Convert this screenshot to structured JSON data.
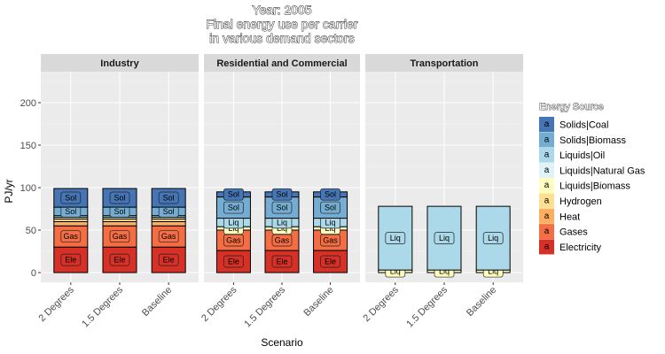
{
  "chart_data": {
    "type": "bar",
    "stacked": true,
    "title_lines": [
      "Year: 2005",
      "Final energy use per carrier",
      "in various demand sectors"
    ],
    "xlabel": "Scenario",
    "ylabel": "PJ/yr",
    "ylim": [
      -10,
      235
    ],
    "yticks": [
      0,
      50,
      100,
      150,
      200
    ],
    "grid": true,
    "categories": [
      "2 Degrees",
      "1.5 Degrees",
      "Baseline"
    ],
    "facets": [
      "Industry",
      "Residential and Commercial",
      "Transportation"
    ],
    "legend": {
      "title": "Energy Source",
      "placement": "right",
      "key_letter": "a"
    },
    "carriers": [
      {
        "name": "Solids|Coal",
        "color": "#4575b4",
        "short": "Sol"
      },
      {
        "name": "Solids|Biomass",
        "color": "#74add1",
        "short": "Sol"
      },
      {
        "name": "Liquids|Oil",
        "color": "#abd9e9",
        "short": "Liq"
      },
      {
        "name": "Liquids|Natural Gas",
        "color": "#e0f3f8",
        "short": "Liq"
      },
      {
        "name": "Liquids|Biomass",
        "color": "#ffffbf",
        "short": "Liq"
      },
      {
        "name": "Hydrogen",
        "color": "#fee090",
        "short": "Hyd"
      },
      {
        "name": "Heat",
        "color": "#fdae61",
        "short": "Gas"
      },
      {
        "name": "Gases",
        "color": "#f46d43",
        "short": "Gas"
      },
      {
        "name": "Electricity",
        "color": "#d73027",
        "short": "Ele"
      }
    ],
    "series": [
      {
        "facet": "Industry",
        "stack": [
          {
            "carrier": "Electricity",
            "value": 30,
            "label": "Ele"
          },
          {
            "carrier": "Gases",
            "value": 25,
            "label": "Gas"
          },
          {
            "carrier": "Heat",
            "value": 5,
            "label": ""
          },
          {
            "carrier": "Hydrogen",
            "value": 3,
            "label": ""
          },
          {
            "carrier": "Liquids|Biomass",
            "value": 2,
            "label": ""
          },
          {
            "carrier": "Liquids|Oil",
            "value": 2,
            "label": ""
          },
          {
            "carrier": "Solids|Biomass",
            "value": 10,
            "label": "Sol"
          },
          {
            "carrier": "Solids|Coal",
            "value": 22,
            "label": "Sol"
          }
        ]
      },
      {
        "facet": "Residential and Commercial",
        "stack": [
          {
            "carrier": "Electricity",
            "value": 26,
            "label": "Ele"
          },
          {
            "carrier": "Gases",
            "value": 24,
            "label": "Gas"
          },
          {
            "carrier": "Liquids|Biomass",
            "value": 4,
            "label": "Liq"
          },
          {
            "carrier": "Liquids|Oil",
            "value": 10,
            "label": "Liq"
          },
          {
            "carrier": "Solids|Biomass",
            "value": 25,
            "label": "Sol"
          },
          {
            "carrier": "Solids|Coal",
            "value": 6,
            "label": "Sol"
          }
        ]
      },
      {
        "facet": "Transportation",
        "stack": [
          {
            "carrier": "Liquids|Biomass",
            "value": 3,
            "label": "Liq"
          },
          {
            "carrier": "Liquids|Oil",
            "value": 75,
            "label": "Liq"
          }
        ]
      }
    ]
  }
}
